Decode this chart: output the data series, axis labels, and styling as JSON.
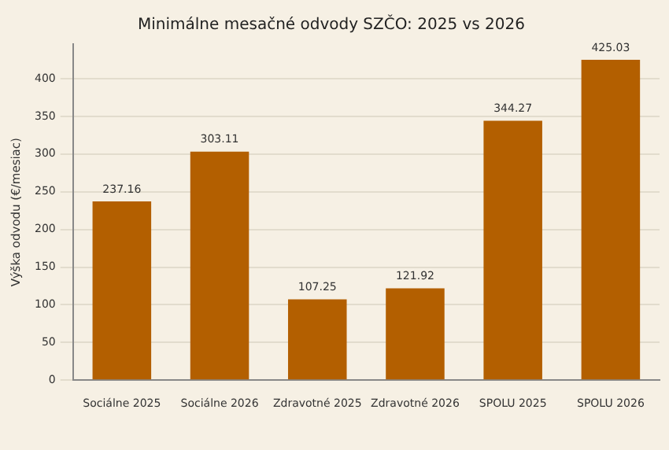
{
  "chart_data": {
    "type": "bar",
    "title": "Minimálne mesačné odvody SZČO: 2025 vs 2026",
    "ylabel": "Výška odvodu (€/mesiac)",
    "categories": [
      "Sociálne 2025",
      "Sociálne 2026",
      "Zdravotné 2025",
      "Zdravotné 2026",
      "SPOLU 2025",
      "SPOLU 2026"
    ],
    "values": [
      237.16,
      303.11,
      107.25,
      121.92,
      344.27,
      425.03
    ],
    "color": "#b35f00",
    "ylim": [
      0,
      446
    ],
    "yticks": [
      0,
      50,
      100,
      150,
      200,
      250,
      300,
      350,
      400
    ],
    "grid": "y",
    "data_labels": true
  }
}
